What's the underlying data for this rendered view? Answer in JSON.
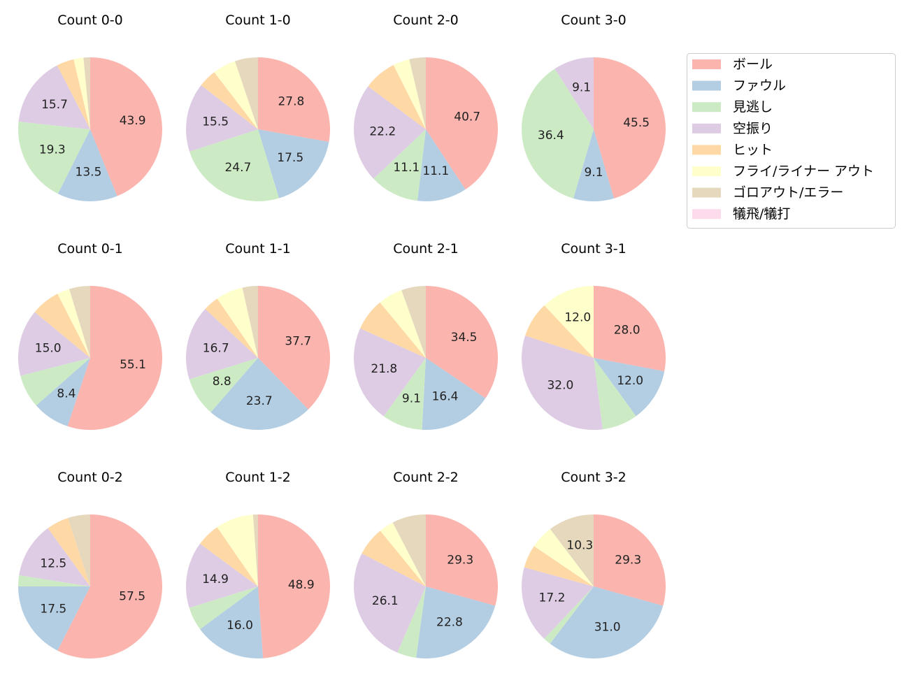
{
  "chart_data": {
    "type": "pie",
    "categories": [
      "ボール",
      "ファウル",
      "見逃し",
      "空振り",
      "ヒット",
      "フライ/ライナー アウト",
      "ゴロアウト/エラー",
      "犠飛/犠打"
    ],
    "colors": [
      "#fbb4ae",
      "#b3cde3",
      "#ccebc5",
      "#decbe4",
      "#fed9a6",
      "#ffffcc",
      "#e5d8bd",
      "#fddaec"
    ],
    "legend_position": "right",
    "start": "top, clockwise",
    "pies": [
      {
        "title": "Count 0-0",
        "values": [
          43.9,
          13.5,
          19.3,
          15.7,
          3.9,
          2.2,
          1.5,
          0
        ],
        "labels": [
          "43.9",
          "13.5",
          "19.3",
          "15.7",
          "",
          "",
          "",
          ""
        ]
      },
      {
        "title": "Count 1-0",
        "values": [
          27.8,
          17.5,
          24.7,
          15.5,
          4.1,
          5.2,
          5.2,
          0
        ],
        "labels": [
          "27.8",
          "17.5",
          "24.7",
          "15.5",
          "",
          "",
          "",
          ""
        ]
      },
      {
        "title": "Count 2-0",
        "values": [
          40.7,
          11.1,
          11.1,
          22.2,
          7.4,
          3.7,
          3.7,
          0
        ],
        "labels": [
          "40.7",
          "11.1",
          "11.1",
          "22.2",
          "",
          "",
          "",
          ""
        ]
      },
      {
        "title": "Count 3-0",
        "values": [
          45.5,
          9.1,
          36.4,
          9.1,
          0,
          0,
          0,
          0
        ],
        "labels": [
          "45.5",
          "9.1",
          "36.4",
          "9.1",
          "",
          "",
          "",
          ""
        ]
      },
      {
        "title": "Count 0-1",
        "values": [
          55.1,
          8.4,
          7.5,
          15.0,
          6.5,
          2.8,
          4.7,
          0
        ],
        "labels": [
          "55.1",
          "8.4",
          "",
          "15.0",
          "",
          "",
          "",
          ""
        ]
      },
      {
        "title": "Count 1-1",
        "values": [
          37.7,
          23.7,
          8.8,
          16.7,
          3.5,
          6.1,
          3.5,
          0
        ],
        "labels": [
          "37.7",
          "23.7",
          "8.8",
          "16.7",
          "",
          "",
          "",
          ""
        ]
      },
      {
        "title": "Count 2-1",
        "values": [
          34.5,
          16.4,
          9.1,
          21.8,
          7.3,
          5.5,
          5.5,
          0
        ],
        "labels": [
          "34.5",
          "16.4",
          "9.1",
          "21.8",
          "",
          "",
          "",
          ""
        ]
      },
      {
        "title": "Count 3-1",
        "values": [
          28.0,
          12.0,
          8.0,
          32.0,
          8.0,
          12.0,
          0,
          0
        ],
        "labels": [
          "28.0",
          "12.0",
          "",
          "32.0",
          "",
          "12.0",
          "",
          ""
        ]
      },
      {
        "title": "Count 0-2",
        "values": [
          57.5,
          17.5,
          2.5,
          12.5,
          5.0,
          0,
          5.0,
          0
        ],
        "labels": [
          "57.5",
          "17.5",
          "",
          "12.5",
          "",
          "",
          "",
          ""
        ]
      },
      {
        "title": "Count 1-2",
        "values": [
          48.9,
          16.0,
          5.3,
          14.9,
          5.3,
          8.5,
          1.1,
          0
        ],
        "labels": [
          "48.9",
          "16.0",
          "",
          "14.9",
          "",
          "",
          "",
          ""
        ]
      },
      {
        "title": "Count 2-2",
        "values": [
          29.3,
          22.8,
          4.3,
          26.1,
          6.5,
          3.3,
          7.6,
          0
        ],
        "labels": [
          "29.3",
          "22.8",
          "",
          "26.1",
          "",
          "",
          "",
          ""
        ]
      },
      {
        "title": "Count 3-2",
        "values": [
          29.3,
          31.0,
          1.7,
          17.2,
          5.2,
          5.2,
          10.3,
          0
        ],
        "labels": [
          "29.3",
          "31.0",
          "",
          "17.2",
          "",
          "",
          "10.3",
          ""
        ]
      }
    ]
  }
}
